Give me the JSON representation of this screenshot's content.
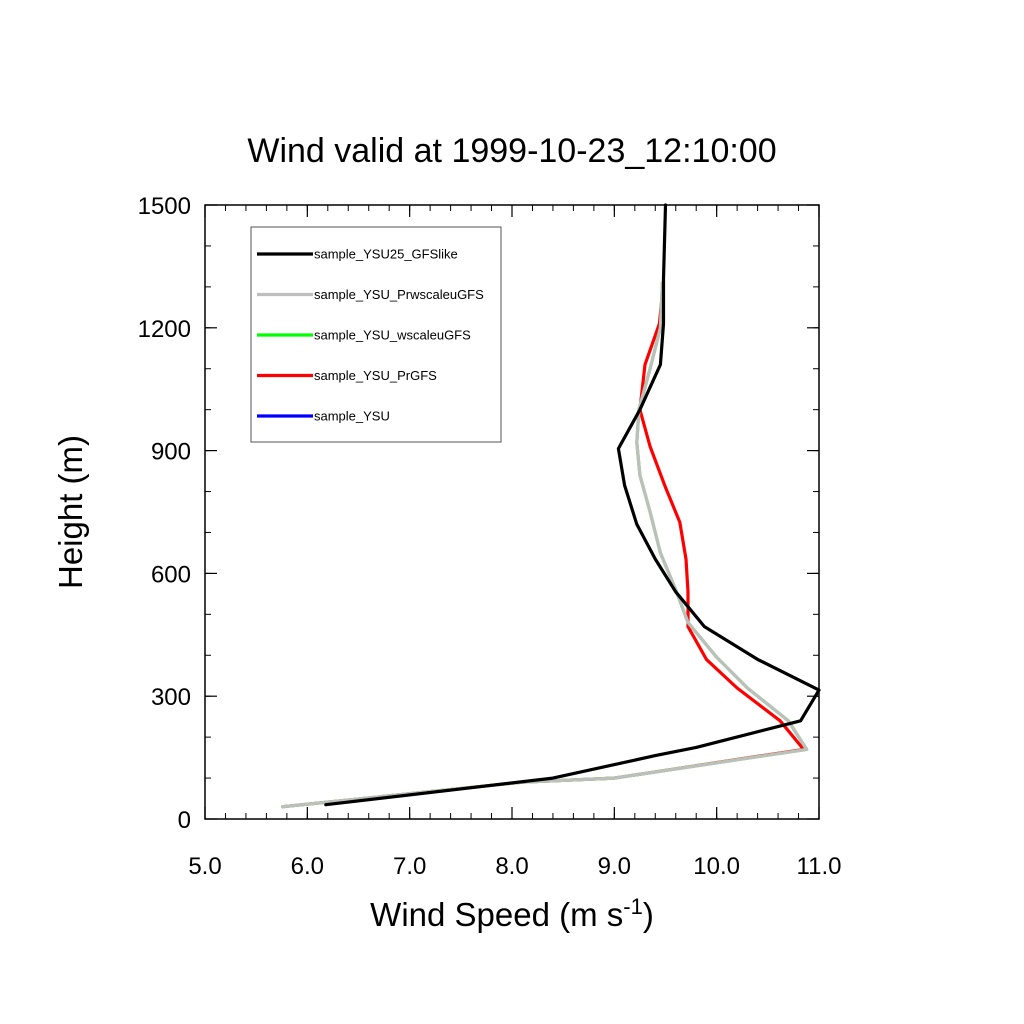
{
  "chart_data": {
    "type": "line",
    "title": "Wind valid at 1999-10-23_12:10:00",
    "xlabel": "Wind Speed (m s",
    "xlabel_sup": "-1",
    "xlabel_end": ")",
    "ylabel": "Height (m)",
    "xlim": [
      5.0,
      11.0
    ],
    "ylim": [
      0,
      1500
    ],
    "xticks": [
      "5.0",
      "6.0",
      "7.0",
      "8.0",
      "9.0",
      "10.0",
      "11.0"
    ],
    "yticks": [
      "0",
      "300",
      "600",
      "900",
      "1200",
      "1500"
    ],
    "legend_position": "top-left",
    "grid": false,
    "series": [
      {
        "name": "sample_YSU25_GFSlike",
        "color": "#000000",
        "points": [
          [
            6.18,
            35
          ],
          [
            8.4,
            100
          ],
          [
            9.4,
            155
          ],
          [
            9.8,
            175
          ],
          [
            10.82,
            240
          ],
          [
            11.0,
            315
          ],
          [
            10.4,
            390
          ],
          [
            9.88,
            470
          ],
          [
            9.6,
            555
          ],
          [
            9.4,
            635
          ],
          [
            9.22,
            720
          ],
          [
            9.1,
            815
          ],
          [
            9.04,
            905
          ],
          [
            9.25,
            1000
          ],
          [
            9.45,
            1110
          ],
          [
            9.48,
            1210
          ],
          [
            9.48,
            1320
          ],
          [
            9.5,
            1500
          ]
        ]
      },
      {
        "name": "sample_YSU_PrwscaleuGFS",
        "color": "#bebebe",
        "points": [
          [
            5.76,
            30
          ],
          [
            8.1,
            90
          ],
          [
            9.0,
            100
          ],
          [
            10.88,
            170
          ],
          [
            10.7,
            240
          ],
          [
            10.3,
            320
          ],
          [
            10.0,
            395
          ],
          [
            9.72,
            480
          ],
          [
            9.6,
            560
          ],
          [
            9.45,
            650
          ],
          [
            9.35,
            750
          ],
          [
            9.25,
            840
          ],
          [
            9.22,
            920
          ],
          [
            9.24,
            1000
          ],
          [
            9.35,
            1100
          ],
          [
            9.45,
            1200
          ],
          [
            9.47,
            1310
          ]
        ]
      },
      {
        "name": "sample_YSU_wscaleuGFS",
        "color": "#00ff00",
        "points": [
          [
            5.76,
            30
          ],
          [
            8.1,
            90
          ],
          [
            9.0,
            100
          ],
          [
            10.88,
            170
          ],
          [
            10.7,
            240
          ],
          [
            10.3,
            320
          ],
          [
            10.0,
            395
          ],
          [
            9.72,
            480
          ],
          [
            9.6,
            560
          ],
          [
            9.45,
            650
          ],
          [
            9.35,
            750
          ],
          [
            9.25,
            840
          ],
          [
            9.22,
            920
          ],
          [
            9.24,
            1000
          ],
          [
            9.35,
            1100
          ],
          [
            9.45,
            1200
          ],
          [
            9.47,
            1310
          ]
        ]
      },
      {
        "name": "sample_YSU_PrGFS",
        "color": "#ff0000",
        "points": [
          [
            5.76,
            30
          ],
          [
            8.1,
            90
          ],
          [
            9.0,
            100
          ],
          [
            10.85,
            170
          ],
          [
            10.62,
            240
          ],
          [
            10.2,
            320
          ],
          [
            9.9,
            390
          ],
          [
            9.72,
            470
          ],
          [
            9.72,
            555
          ],
          [
            9.7,
            635
          ],
          [
            9.64,
            725
          ],
          [
            9.5,
            810
          ],
          [
            9.35,
            910
          ],
          [
            9.25,
            1000
          ],
          [
            9.3,
            1110
          ],
          [
            9.44,
            1210
          ],
          [
            9.48,
            1310
          ]
        ]
      },
      {
        "name": "sample_YSU",
        "color": "#0000ff",
        "points": []
      }
    ]
  }
}
